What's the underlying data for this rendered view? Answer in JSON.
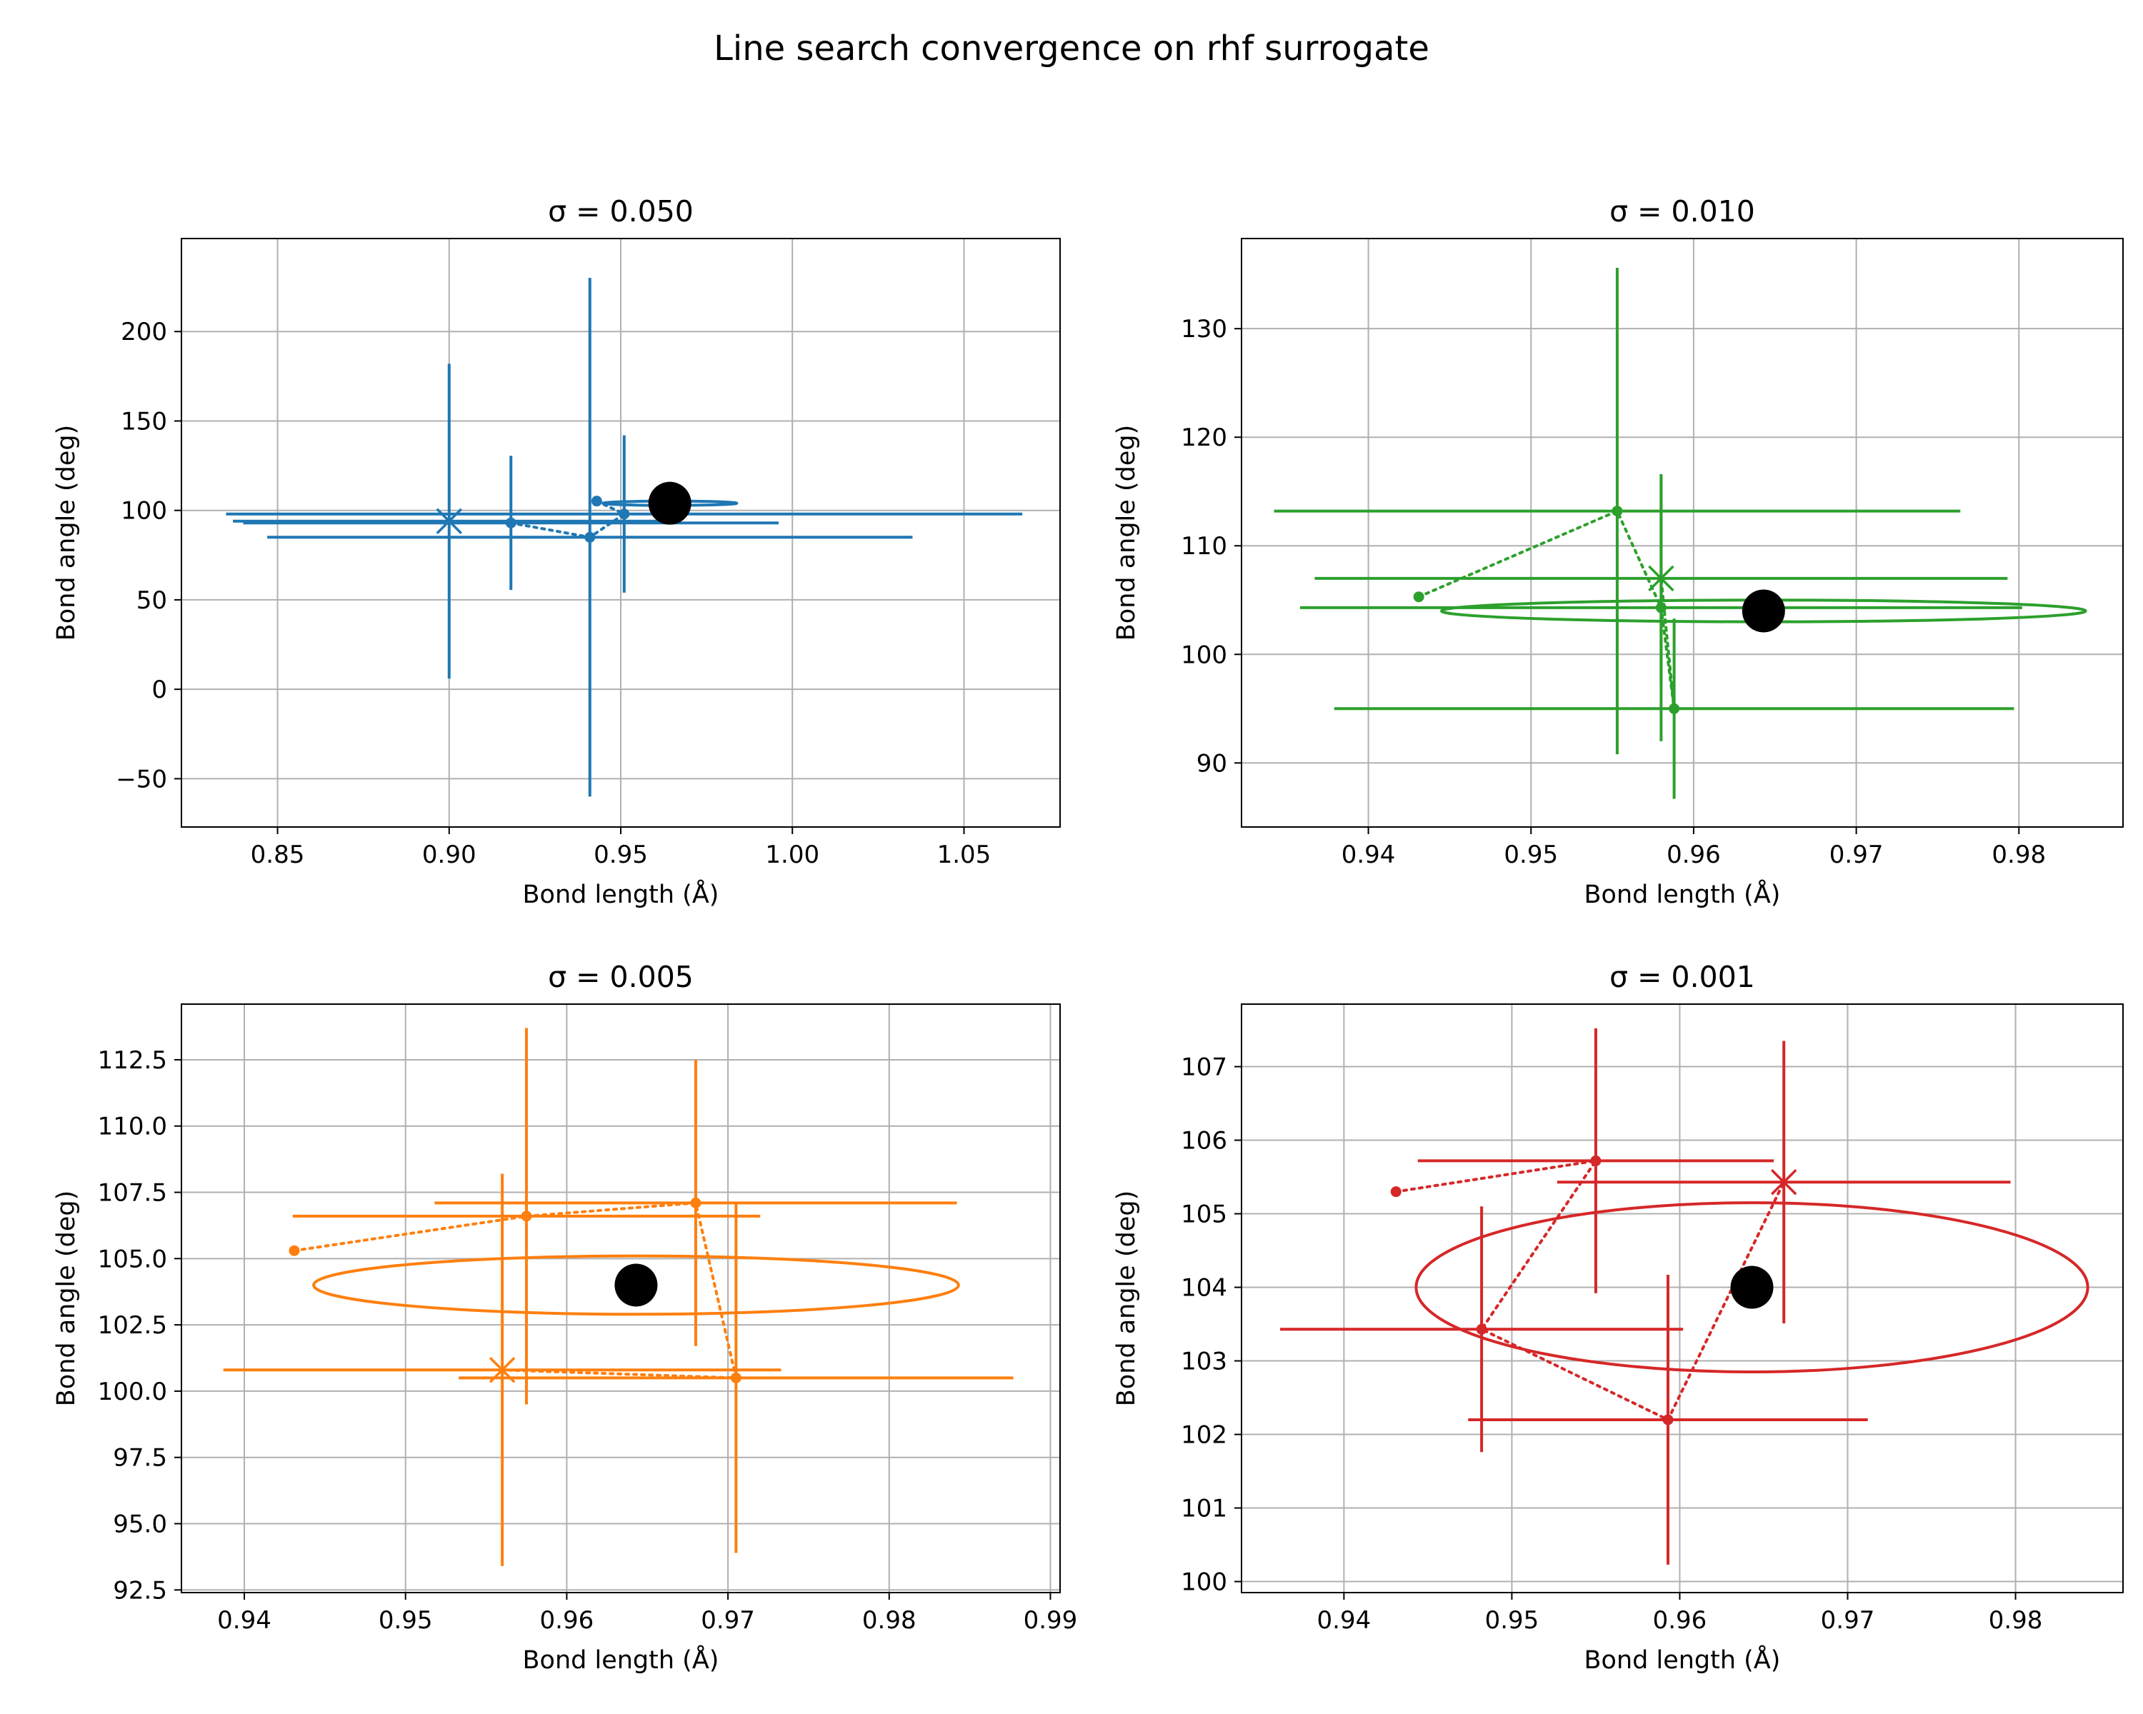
{
  "figure": {
    "title": "Line search convergence on rhf surrogate"
  },
  "chart_data": [
    {
      "type": "scatter",
      "title": "σ = 0.050",
      "xlabel": "Bond length (Å)",
      "ylabel": "Bond angle (deg)",
      "xlim": [
        0.822,
        1.078
      ],
      "ylim": [
        -77,
        252
      ],
      "xticks": [
        0.85,
        0.9,
        0.95,
        1.0,
        1.05
      ],
      "xtick_labels": [
        "0.85",
        "0.90",
        "0.95",
        "1.00",
        "1.05"
      ],
      "yticks": [
        -50,
        0,
        50,
        100,
        150,
        200
      ],
      "ytick_labels": [
        "−50",
        "0",
        "50",
        "100",
        "150",
        "200"
      ],
      "grid": true,
      "color": "#1f77b4",
      "target": {
        "x": 0.9643,
        "y": 104.0
      },
      "ellipse": {
        "cx": 0.9643,
        "cy": 104.0,
        "rx": 0.0195,
        "ry": 1.2
      },
      "path": [
        {
          "x": 0.943,
          "y": 105.2,
          "xerr": 0.0,
          "yerr": 0.0,
          "marker": "start"
        },
        {
          "x": 0.951,
          "y": 98.0,
          "xerr": 0.116,
          "yerr": 44.0,
          "marker": "dot"
        },
        {
          "x": 0.941,
          "y": 85.0,
          "xerr": 0.094,
          "yerr": 145.0,
          "marker": "dot"
        },
        {
          "x": 0.918,
          "y": 93.0,
          "xerr": 0.078,
          "yerr": 37.5,
          "marker": "dot"
        },
        {
          "x": 0.9,
          "y": 94.0,
          "xerr": 0.063,
          "yerr": 88.0,
          "marker": "x"
        }
      ]
    },
    {
      "type": "scatter",
      "title": "σ = 0.010",
      "xlabel": "Bond length (Å)",
      "ylabel": "Bond angle (deg)",
      "xlim": [
        0.9322,
        0.9864
      ],
      "ylim": [
        84.1,
        138.3
      ],
      "xticks": [
        0.94,
        0.95,
        0.96,
        0.97,
        0.98
      ],
      "xtick_labels": [
        "0.94",
        "0.95",
        "0.96",
        "0.97",
        "0.98"
      ],
      "yticks": [
        90,
        100,
        110,
        120,
        130
      ],
      "ytick_labels": [
        "90",
        "100",
        "110",
        "120",
        "130"
      ],
      "grid": true,
      "color": "#2ca02c",
      "target": {
        "x": 0.9643,
        "y": 104.0
      },
      "ellipse": {
        "cx": 0.9643,
        "cy": 104.0,
        "rx": 0.0198,
        "ry": 1.0
      },
      "path": [
        {
          "x": 0.9431,
          "y": 105.3,
          "xerr": 0.0,
          "yerr": 0.0,
          "marker": "start"
        },
        {
          "x": 0.9553,
          "y": 113.2,
          "xerr": 0.0211,
          "yerr": 22.4,
          "marker": "dot"
        },
        {
          "x": 0.958,
          "y": 104.3,
          "xerr": 0.0222,
          "yerr": 12.3,
          "marker": "dot"
        },
        {
          "x": 0.9588,
          "y": 95.0,
          "xerr": 0.0209,
          "yerr": 8.3,
          "marker": "dot"
        },
        {
          "x": 0.958,
          "y": 107.0,
          "xerr": 0.0213,
          "yerr": 9.5,
          "marker": "x"
        }
      ]
    },
    {
      "type": "scatter",
      "title": "σ = 0.005",
      "xlabel": "Bond length (Å)",
      "ylabel": "Bond angle (deg)",
      "xlim": [
        0.9361,
        0.9906
      ],
      "ylim": [
        92.4,
        114.6
      ],
      "xticks": [
        0.94,
        0.95,
        0.96,
        0.97,
        0.98,
        0.99
      ],
      "xtick_labels": [
        "0.94",
        "0.95",
        "0.96",
        "0.97",
        "0.98",
        "0.99"
      ],
      "yticks": [
        92.5,
        95.0,
        97.5,
        100.0,
        102.5,
        105.0,
        107.5,
        110.0,
        112.5
      ],
      "ytick_labels": [
        "92.5",
        "95.0",
        "97.5",
        "100.0",
        "102.5",
        "105.0",
        "107.5",
        "110.0",
        "112.5"
      ],
      "grid": true,
      "color": "#ff7f0e",
      "target": {
        "x": 0.9643,
        "y": 104.0
      },
      "ellipse": {
        "cx": 0.9643,
        "cy": 104.0,
        "rx": 0.02,
        "ry": 1.1
      },
      "path": [
        {
          "x": 0.9431,
          "y": 105.3,
          "xerr": 0.0,
          "yerr": 0.0,
          "marker": "start"
        },
        {
          "x": 0.9575,
          "y": 106.6,
          "xerr": 0.0145,
          "yerr": 7.1,
          "marker": "dot"
        },
        {
          "x": 0.968,
          "y": 107.1,
          "xerr": 0.0162,
          "yerr": 5.4,
          "marker": "dot"
        },
        {
          "x": 0.9705,
          "y": 100.5,
          "xerr": 0.0172,
          "yerr": 6.6,
          "marker": "dot"
        },
        {
          "x": 0.956,
          "y": 100.8,
          "xerr": 0.0173,
          "yerr": 7.4,
          "marker": "x"
        }
      ]
    },
    {
      "type": "scatter",
      "title": "σ = 0.001",
      "xlabel": "Bond length (Å)",
      "ylabel": "Bond angle (deg)",
      "xlim": [
        0.9339,
        0.9864
      ],
      "ylim": [
        99.85,
        107.85
      ],
      "xticks": [
        0.94,
        0.95,
        0.96,
        0.97,
        0.98
      ],
      "xtick_labels": [
        "0.94",
        "0.95",
        "0.96",
        "0.97",
        "0.98"
      ],
      "yticks": [
        100,
        101,
        102,
        103,
        104,
        105,
        106,
        107
      ],
      "ytick_labels": [
        "100",
        "101",
        "102",
        "103",
        "104",
        "105",
        "106",
        "107"
      ],
      "grid": true,
      "color": "#d62728",
      "target": {
        "x": 0.9643,
        "y": 104.0
      },
      "ellipse": {
        "cx": 0.9643,
        "cy": 104.0,
        "rx": 0.02,
        "ry": 1.15
      },
      "path": [
        {
          "x": 0.9431,
          "y": 105.3,
          "xerr": 0.0,
          "yerr": 0.0,
          "marker": "start"
        },
        {
          "x": 0.955,
          "y": 105.72,
          "xerr": 0.0106,
          "yerr": 1.8,
          "marker": "dot"
        },
        {
          "x": 0.9482,
          "y": 103.43,
          "xerr": 0.012,
          "yerr": 1.67,
          "marker": "dot"
        },
        {
          "x": 0.9593,
          "y": 102.2,
          "xerr": 0.0119,
          "yerr": 1.97,
          "marker": "dot"
        },
        {
          "x": 0.9662,
          "y": 105.43,
          "xerr": 0.0135,
          "yerr": 1.92,
          "marker": "x"
        }
      ]
    }
  ]
}
